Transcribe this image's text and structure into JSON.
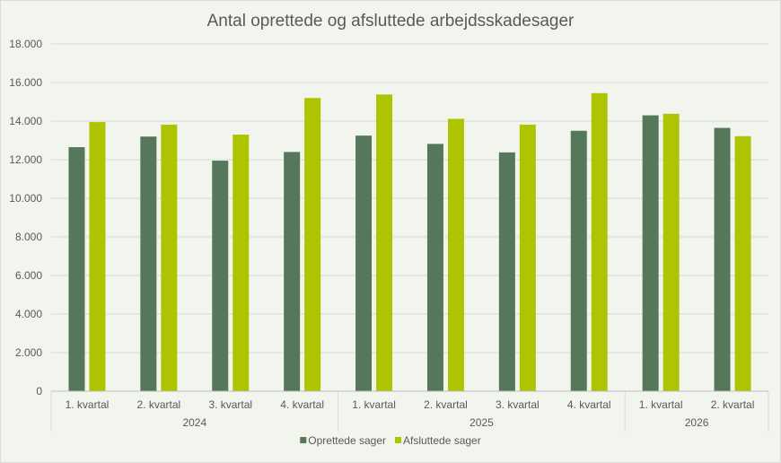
{
  "chart_data": {
    "type": "bar",
    "title": "Antal oprettede og afsluttede arbejdsskadesager",
    "xlabel": "",
    "ylabel": "",
    "ylim": [
      0,
      18000
    ],
    "y_ticks": [
      "0",
      "2.000",
      "4.000",
      "6.000",
      "8.000",
      "10.000",
      "12.000",
      "14.000",
      "16.000",
      "18.000"
    ],
    "grid": true,
    "legend_position": "bottom",
    "categories": [
      "1. kvartal",
      "2. kvartal",
      "3. kvartal",
      "4. kvartal",
      "1. kvartal",
      "2. kvartal",
      "3. kvartal",
      "4. kvartal",
      "1. kvartal",
      "2. kvartal"
    ],
    "groups": [
      {
        "label": "2024",
        "count": 4
      },
      {
        "label": "2025",
        "count": 4
      },
      {
        "label": "2026",
        "count": 2
      }
    ],
    "series": [
      {
        "name": "Oprettede sager",
        "color": "#56785a",
        "values": [
          12650,
          13200,
          11950,
          12400,
          13250,
          12820,
          12380,
          13500,
          14300,
          13650
        ]
      },
      {
        "name": "Afsluttede sager",
        "color": "#aec400",
        "values": [
          13950,
          13820,
          13300,
          15200,
          15380,
          14120,
          13820,
          15450,
          14380,
          13220
        ]
      }
    ]
  }
}
